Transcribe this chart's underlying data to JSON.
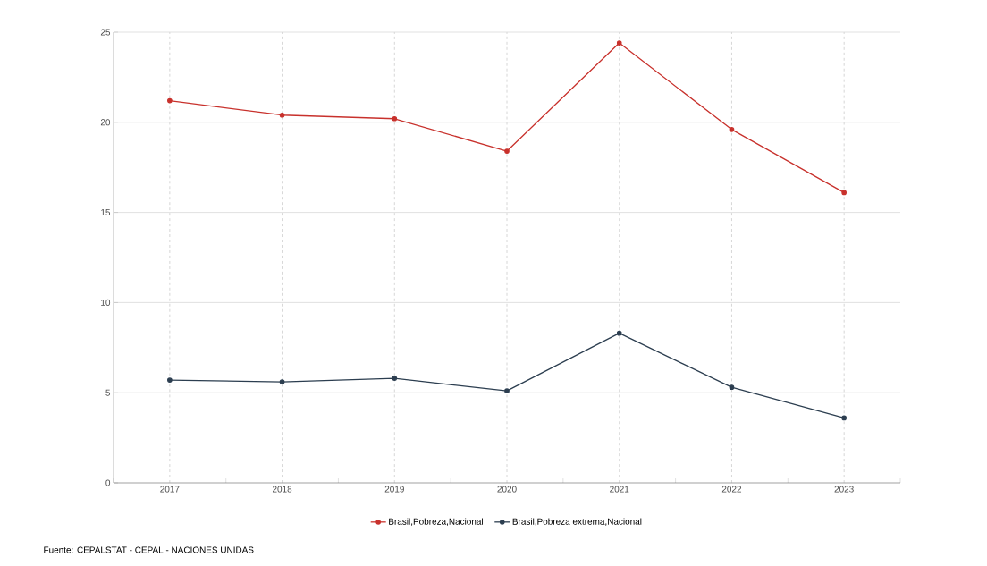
{
  "chart_data": {
    "type": "line",
    "categories": [
      "2017",
      "2018",
      "2019",
      "2020",
      "2021",
      "2022",
      "2023"
    ],
    "series": [
      {
        "name": "Brasil,Pobreza,Nacional",
        "color": "#c8312c",
        "values": [
          21.2,
          20.4,
          20.2,
          18.4,
          24.4,
          19.6,
          16.1
        ]
      },
      {
        "name": "Brasil,Pobreza extrema,Nacional",
        "color": "#2c3e50",
        "values": [
          5.7,
          5.6,
          5.8,
          5.1,
          8.3,
          5.3,
          3.6
        ]
      }
    ],
    "ylim": [
      0,
      25
    ],
    "yticks": [
      0,
      5,
      10,
      15,
      20,
      25
    ],
    "grid": true,
    "legend": "bottom",
    "marker": "circle",
    "line_style": "solid",
    "annotations": [
      "Fuente: CEPALSTAT - CEPAL - NACIONES UNIDAS"
    ]
  }
}
